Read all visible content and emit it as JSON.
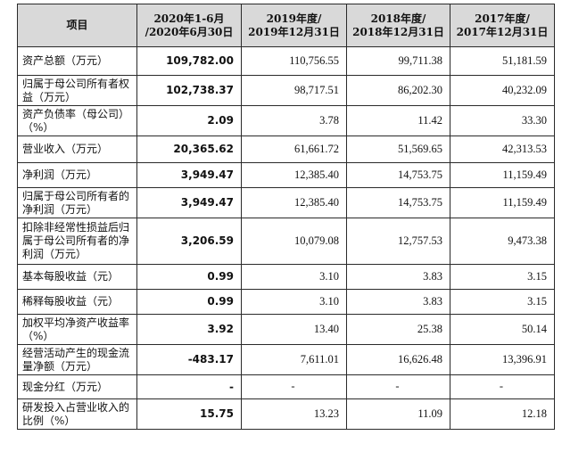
{
  "header": {
    "item": "项目",
    "periods": [
      [
        "2020年1-6月",
        "/2020年6月30日"
      ],
      [
        "2019年度/",
        "2019年12月31日"
      ],
      [
        "2018年度/",
        "2018年12月31日"
      ],
      [
        "2017年度/",
        "2017年12月31日"
      ]
    ]
  },
  "rows": [
    {
      "label": "资产总额（万元）",
      "values": [
        "109,782.00",
        "110,756.55",
        "99,711.38",
        "51,181.59"
      ],
      "h": 32
    },
    {
      "label": "归属于母公司所有者权益（万元）",
      "values": [
        "102,738.37",
        "98,717.51",
        "86,202.30",
        "40,232.09"
      ],
      "h": 34
    },
    {
      "label": "资产负债率（母公司）（%）",
      "values": [
        "2.09",
        "3.78",
        "11.42",
        "33.30"
      ],
      "h": 34
    },
    {
      "label": "营业收入（万元）",
      "values": [
        "20,365.62",
        "61,661.72",
        "51,569.65",
        "42,313.53"
      ],
      "h": 30
    },
    {
      "label": "净利润（万元）",
      "values": [
        "3,949.47",
        "12,385.40",
        "14,753.75",
        "11,159.49"
      ],
      "h": 28
    },
    {
      "label": "归属于母公司所有者的净利润（万元）",
      "values": [
        "3,949.47",
        "12,385.40",
        "14,753.75",
        "11,159.49"
      ],
      "h": 34
    },
    {
      "label": "扣除非经常性损益后归属于母公司所有者的净利润（万元）",
      "values": [
        "3,206.59",
        "10,079.08",
        "12,757.53",
        "9,473.38"
      ],
      "h": 52
    },
    {
      "label": "基本每股收益（元）",
      "values": [
        "0.99",
        "3.10",
        "3.83",
        "3.15"
      ],
      "h": 28
    },
    {
      "label": "稀释每股收益（元）",
      "values": [
        "0.99",
        "3.10",
        "3.83",
        "3.15"
      ],
      "h": 28
    },
    {
      "label": "加权平均净资产收益率（%）",
      "values": [
        "3.92",
        "13.40",
        "25.38",
        "50.14"
      ],
      "h": 34
    },
    {
      "label": "经营活动产生的现金流量净额（万元）",
      "values": [
        "-483.17",
        "7,611.01",
        "16,626.48",
        "13,396.91"
      ],
      "h": 34
    },
    {
      "label": "现金分红（万元）",
      "values": [
        "-",
        "-",
        "-",
        "-"
      ],
      "h": 27
    },
    {
      "label": "研发投入占营业收入的比例（%）",
      "values": [
        "15.75",
        "13.23",
        "11.09",
        "12.18"
      ],
      "h": 34
    }
  ]
}
